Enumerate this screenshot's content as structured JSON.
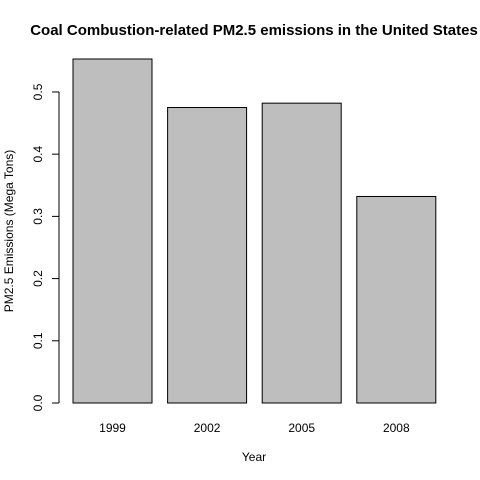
{
  "chart_data": {
    "type": "bar",
    "title": "Coal Combustion-related PM2.5 emissions in the United States",
    "xlabel": "Year",
    "ylabel": "PM2.5 Emissions (Mega Tons)",
    "categories": [
      "1999",
      "2002",
      "2005",
      "2008"
    ],
    "values": [
      0.553,
      0.475,
      0.482,
      0.332
    ],
    "ylim": [
      0,
      0.553
    ],
    "yticks": [
      0.0,
      0.1,
      0.2,
      0.3,
      0.4,
      0.5
    ],
    "ytick_labels": [
      "0.0",
      "0.1",
      "0.2",
      "0.3",
      "0.4",
      "0.5"
    ],
    "grid": false,
    "colors": {
      "bar_fill": "#bebebe",
      "bar_stroke": "#000000",
      "axis": "#000000",
      "text": "#000000"
    }
  }
}
